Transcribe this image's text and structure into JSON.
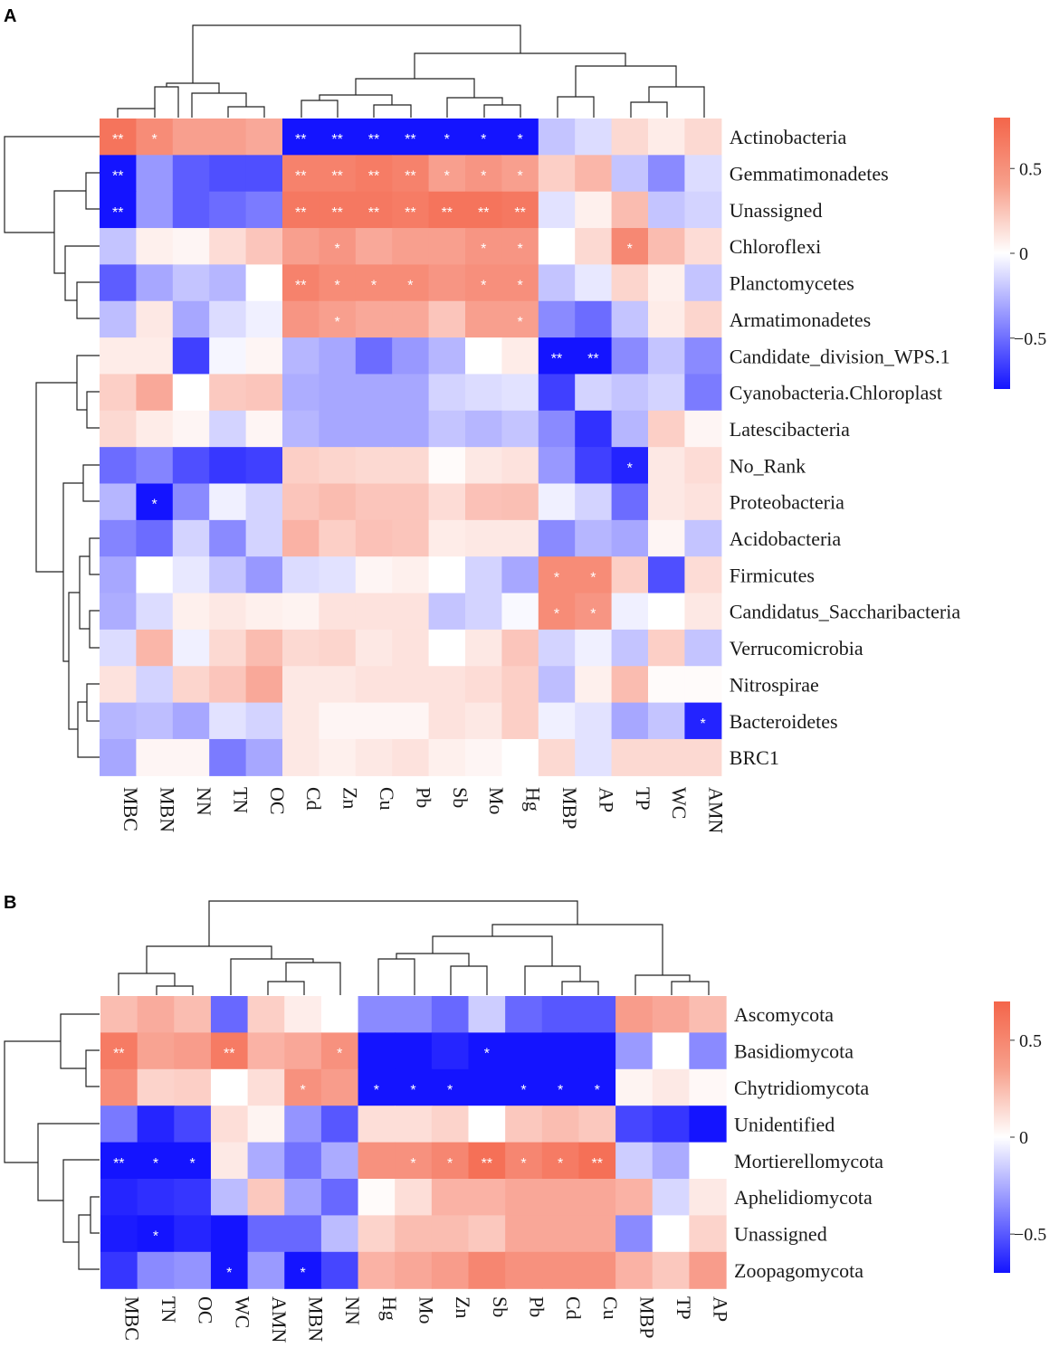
{
  "chart_data": [
    {
      "type": "heatmap",
      "panel": "A",
      "columns": [
        "MBC",
        "MBN",
        "NN",
        "TN",
        "OC",
        "Cd",
        "Zn",
        "Cu",
        "Pb",
        "Sb",
        "Mo",
        "Hg",
        "MBP",
        "AP",
        "TP",
        "WC",
        "AMN"
      ],
      "rows": [
        "Actinobacteria",
        "Gemmatimonadetes",
        "Unassigned",
        "Chloroflexi",
        "Planctomycetes",
        "Armatimonadetes",
        "Candidate_division_WPS.1",
        "Cyanobacteria.Chloroplast",
        "Latescibacteria",
        "No_Rank",
        "Proteobacteria",
        "Acidobacteria",
        "Firmicutes",
        "Candidatus_Saccharibacteria",
        "Verrucomicrobia",
        "Nitrospirae",
        "Bacteroidetes",
        "BRC1"
      ],
      "values": [
        [
          0.72,
          0.6,
          0.5,
          0.5,
          0.45,
          -0.85,
          -0.85,
          -0.85,
          -0.85,
          -0.8,
          -0.82,
          -0.8,
          -0.2,
          -0.12,
          0.2,
          0.1,
          0.2
        ],
        [
          -0.85,
          -0.35,
          -0.55,
          -0.6,
          -0.6,
          0.65,
          0.65,
          0.68,
          0.65,
          0.5,
          0.55,
          0.5,
          0.25,
          0.38,
          -0.2,
          -0.4,
          -0.12
        ],
        [
          -0.85,
          -0.35,
          -0.55,
          -0.5,
          -0.45,
          0.7,
          0.7,
          0.7,
          0.68,
          0.72,
          0.72,
          0.7,
          -0.1,
          0.08,
          0.35,
          -0.2,
          -0.15
        ],
        [
          -0.2,
          0.08,
          0.05,
          0.18,
          0.3,
          0.5,
          0.55,
          0.45,
          0.5,
          0.5,
          0.55,
          0.55,
          0.0,
          0.2,
          0.62,
          0.35,
          0.18
        ],
        [
          -0.55,
          -0.3,
          -0.2,
          -0.25,
          0.0,
          0.65,
          0.6,
          0.6,
          0.6,
          0.55,
          0.58,
          0.58,
          -0.2,
          -0.08,
          0.22,
          0.08,
          -0.2
        ],
        [
          -0.22,
          0.12,
          -0.3,
          -0.12,
          -0.05,
          0.55,
          0.5,
          0.45,
          0.45,
          0.3,
          0.5,
          0.5,
          -0.4,
          -0.5,
          -0.2,
          0.1,
          0.22
        ],
        [
          0.1,
          0.1,
          -0.65,
          -0.03,
          0.05,
          -0.25,
          -0.3,
          -0.5,
          -0.35,
          -0.25,
          0.0,
          0.1,
          -0.85,
          -0.88,
          -0.4,
          -0.2,
          -0.4
        ],
        [
          0.25,
          0.45,
          0.0,
          0.28,
          0.3,
          -0.28,
          -0.3,
          -0.3,
          -0.3,
          -0.15,
          -0.12,
          -0.1,
          -0.65,
          -0.15,
          -0.2,
          -0.15,
          -0.45
        ],
        [
          0.2,
          0.1,
          0.05,
          -0.15,
          0.05,
          -0.25,
          -0.3,
          -0.3,
          -0.3,
          -0.2,
          -0.25,
          -0.2,
          -0.4,
          -0.7,
          -0.25,
          0.25,
          0.05
        ],
        [
          -0.5,
          -0.42,
          -0.6,
          -0.68,
          -0.65,
          0.25,
          0.22,
          0.2,
          0.2,
          0.02,
          0.12,
          0.15,
          -0.35,
          -0.65,
          -0.75,
          0.12,
          0.18
        ],
        [
          -0.25,
          -0.8,
          -0.4,
          -0.05,
          -0.15,
          0.3,
          0.35,
          0.3,
          0.3,
          0.18,
          0.32,
          0.33,
          -0.05,
          -0.15,
          -0.5,
          0.12,
          0.15
        ],
        [
          -0.42,
          -0.5,
          -0.15,
          -0.4,
          -0.15,
          0.4,
          0.25,
          0.32,
          0.3,
          0.1,
          0.12,
          0.12,
          -0.4,
          -0.25,
          -0.3,
          0.05,
          -0.2
        ],
        [
          -0.3,
          0.0,
          -0.08,
          -0.2,
          -0.35,
          -0.12,
          -0.1,
          0.05,
          0.08,
          0.0,
          -0.15,
          -0.3,
          0.6,
          0.6,
          0.25,
          -0.6,
          0.18
        ],
        [
          -0.28,
          -0.12,
          0.08,
          0.12,
          0.08,
          0.06,
          0.15,
          0.15,
          0.15,
          -0.2,
          -0.15,
          -0.02,
          0.6,
          0.55,
          -0.05,
          0.0,
          0.12
        ],
        [
          -0.12,
          0.38,
          -0.05,
          0.2,
          0.35,
          0.2,
          0.22,
          0.12,
          0.15,
          0.0,
          0.12,
          0.3,
          -0.15,
          -0.05,
          -0.2,
          0.25,
          -0.2
        ],
        [
          0.15,
          -0.15,
          0.22,
          0.3,
          0.45,
          0.12,
          0.12,
          0.15,
          0.15,
          0.15,
          0.18,
          0.25,
          -0.22,
          0.08,
          0.35,
          0.02,
          0.02
        ],
        [
          -0.25,
          -0.22,
          -0.3,
          -0.1,
          -0.15,
          0.12,
          0.05,
          0.05,
          0.05,
          0.15,
          0.12,
          0.25,
          -0.05,
          -0.1,
          -0.3,
          -0.2,
          -0.75
        ],
        [
          -0.3,
          0.05,
          0.05,
          -0.45,
          -0.3,
          0.12,
          0.08,
          0.12,
          0.15,
          0.08,
          0.05,
          0.0,
          0.2,
          -0.1,
          0.2,
          0.2,
          0.2
        ]
      ],
      "stars": [
        [
          "**",
          "*",
          "",
          "",
          "",
          "**",
          "**",
          "**",
          "**",
          "*",
          "*",
          "*",
          "",
          "",
          "",
          "",
          ""
        ],
        [
          "**",
          "",
          "",
          "",
          "",
          "**",
          "**",
          "**",
          "**",
          "*",
          "*",
          "*",
          "",
          "",
          "",
          "",
          ""
        ],
        [
          "**",
          "",
          "",
          "",
          "",
          "**",
          "**",
          "**",
          "**",
          "**",
          "**",
          "**",
          "",
          "",
          "",
          "",
          ""
        ],
        [
          "",
          "",
          "",
          "",
          "",
          "",
          "*",
          "",
          "",
          "",
          "*",
          "*",
          "",
          "",
          "*",
          "",
          ""
        ],
        [
          "",
          "",
          "",
          "",
          "",
          "**",
          "*",
          "*",
          "*",
          "",
          "*",
          "*",
          "",
          "",
          "",
          "",
          ""
        ],
        [
          "",
          "",
          "",
          "",
          "",
          "",
          "*",
          "",
          "",
          "",
          "",
          "*",
          "",
          "",
          "",
          "",
          ""
        ],
        [
          "",
          "",
          "",
          "",
          "",
          "",
          "",
          "",
          "",
          "",
          "",
          "",
          "**",
          "**",
          "",
          "",
          ""
        ],
        [
          "",
          "",
          "",
          "",
          "",
          "",
          "",
          "",
          "",
          "",
          "",
          "",
          "",
          "",
          "",
          "",
          ""
        ],
        [
          "",
          "",
          "",
          "",
          "",
          "",
          "",
          "",
          "",
          "",
          "",
          "",
          "",
          "",
          "",
          "",
          ""
        ],
        [
          "",
          "",
          "",
          "",
          "",
          "",
          "",
          "",
          "",
          "",
          "",
          "",
          "",
          "",
          "*",
          "",
          ""
        ],
        [
          "",
          "*",
          "",
          "",
          "",
          "",
          "",
          "",
          "",
          "",
          "",
          "",
          "",
          "",
          "",
          "",
          ""
        ],
        [
          "",
          "",
          "",
          "",
          "",
          "",
          "",
          "",
          "",
          "",
          "",
          "",
          "",
          "",
          "",
          "",
          ""
        ],
        [
          "",
          "",
          "",
          "",
          "",
          "",
          "",
          "",
          "",
          "",
          "",
          "",
          "*",
          "*",
          "",
          "",
          ""
        ],
        [
          "",
          "",
          "",
          "",
          "",
          "",
          "",
          "",
          "",
          "",
          "",
          "",
          "*",
          "*",
          "",
          "",
          ""
        ],
        [
          "",
          "",
          "",
          "",
          "",
          "",
          "",
          "",
          "",
          "",
          "",
          "",
          "",
          "",
          "",
          "",
          ""
        ],
        [
          "",
          "",
          "",
          "",
          "",
          "",
          "",
          "",
          "",
          "",
          "",
          "",
          "",
          "",
          "",
          "",
          ""
        ],
        [
          "",
          "",
          "",
          "",
          "",
          "",
          "",
          "",
          "",
          "",
          "",
          "",
          "",
          "",
          "",
          "",
          "*"
        ],
        [
          "",
          "",
          "",
          "",
          "",
          "",
          "",
          "",
          "",
          "",
          "",
          "",
          "",
          "",
          "",
          "",
          ""
        ]
      ],
      "colorbar": {
        "ticks": [
          0.5,
          0,
          -0.5
        ],
        "labels": [
          "0.5",
          "0",
          "−0.5"
        ],
        "range": [
          -0.8,
          0.8
        ]
      }
    },
    {
      "type": "heatmap",
      "panel": "B",
      "columns": [
        "MBC",
        "TN",
        "OC",
        "WC",
        "AMN",
        "MBN",
        "NN",
        "Hg",
        "Mo",
        "Zn",
        "Sb",
        "Pb",
        "Cd",
        "Cu",
        "MBP",
        "TP",
        "AP"
      ],
      "rows": [
        "Ascomycota",
        "Basidiomycota",
        "Chytridiomycota",
        "Unidentified",
        "Mortierellomycota",
        "Aphelidiomycota",
        "Unassigned",
        "Zoopagomycota"
      ],
      "values": [
        [
          0.3,
          0.38,
          0.3,
          -0.45,
          0.22,
          0.08,
          0.0,
          -0.35,
          -0.35,
          -0.45,
          -0.15,
          -0.45,
          -0.5,
          -0.5,
          0.45,
          0.4,
          0.3
        ],
        [
          0.6,
          0.42,
          0.45,
          0.6,
          0.35,
          0.4,
          0.5,
          -0.7,
          -0.72,
          -0.65,
          -0.72,
          -0.72,
          -0.72,
          -0.7,
          -0.3,
          0.0,
          -0.35
        ],
        [
          0.52,
          0.2,
          0.22,
          0.0,
          0.15,
          0.5,
          0.45,
          -0.82,
          -0.82,
          -0.82,
          -0.75,
          -0.82,
          -0.88,
          -0.82,
          0.05,
          0.1,
          0.03
        ],
        [
          -0.4,
          -0.65,
          -0.55,
          0.15,
          0.05,
          -0.32,
          -0.5,
          0.15,
          0.15,
          0.2,
          0.0,
          0.25,
          0.3,
          0.25,
          -0.55,
          -0.6,
          -0.75
        ],
        [
          -0.8,
          -0.82,
          -0.82,
          0.1,
          -0.25,
          -0.42,
          -0.25,
          0.5,
          0.5,
          0.55,
          0.65,
          0.55,
          0.6,
          0.65,
          -0.15,
          -0.25,
          0.0
        ],
        [
          -0.65,
          -0.62,
          -0.6,
          -0.2,
          0.25,
          -0.28,
          -0.45,
          0.02,
          0.15,
          0.35,
          0.35,
          0.4,
          0.4,
          0.4,
          0.35,
          -0.12,
          0.1
        ],
        [
          -0.68,
          -0.7,
          -0.65,
          -0.75,
          -0.45,
          -0.45,
          -0.2,
          0.2,
          0.3,
          0.3,
          0.25,
          0.4,
          0.4,
          0.4,
          -0.35,
          0.0,
          0.2
        ],
        [
          -0.6,
          -0.35,
          -0.32,
          -0.82,
          -0.3,
          -0.85,
          -0.55,
          0.35,
          0.4,
          0.45,
          0.55,
          0.5,
          0.5,
          0.5,
          0.35,
          0.25,
          0.45
        ]
      ],
      "stars": [
        [
          "",
          "",
          "",
          "",
          "",
          "",
          "",
          "",
          "",
          "",
          "",
          "",
          "",
          "",
          "",
          "",
          ""
        ],
        [
          "**",
          "",
          "",
          "**",
          "",
          "",
          "*",
          "",
          "",
          "",
          "*",
          "",
          "",
          "",
          "",
          "",
          ""
        ],
        [
          "",
          "",
          "",
          "",
          "",
          "*",
          "",
          "*",
          "*",
          "*",
          "",
          "*",
          "*",
          "*",
          "",
          "",
          ""
        ],
        [
          "",
          "",
          "",
          "",
          "",
          "",
          "",
          "",
          "",
          "",
          "",
          "",
          "",
          "",
          "",
          "",
          ""
        ],
        [
          "**",
          "*",
          "*",
          "",
          "",
          "",
          "",
          "",
          "*",
          "*",
          "**",
          "*",
          "*",
          "**",
          "",
          "",
          ""
        ],
        [
          "",
          "",
          "",
          "",
          "",
          "",
          "",
          "",
          "",
          "",
          "",
          "",
          "",
          "",
          "",
          "",
          ""
        ],
        [
          "",
          "*",
          "",
          "",
          "",
          "",
          "",
          "",
          "",
          "",
          "",
          "",
          "",
          "",
          "",
          "",
          ""
        ],
        [
          "",
          "",
          "",
          "*",
          "",
          "*",
          "",
          "",
          "",
          "",
          "",
          "",
          "",
          "",
          "",
          "",
          ""
        ]
      ],
      "colorbar": {
        "ticks": [
          0.5,
          0,
          -0.5
        ],
        "labels": [
          "0.5",
          "0",
          "−0.5"
        ],
        "range": [
          -0.7,
          0.7
        ]
      }
    }
  ]
}
